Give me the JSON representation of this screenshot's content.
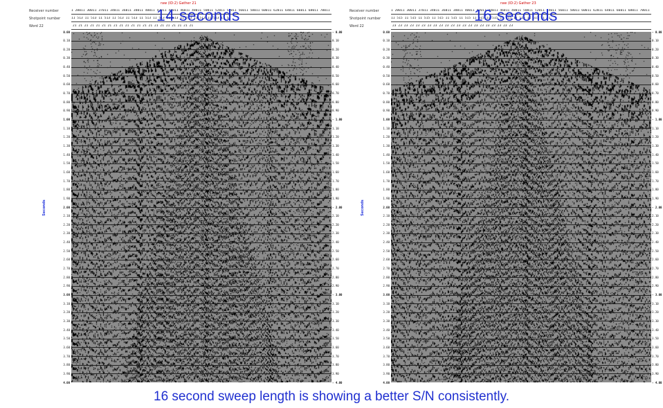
{
  "panels": [
    {
      "gather_title": "raw (ID:2)  Gather 21",
      "overlay_label": "14 seconds",
      "header_labels": [
        "Receiver number",
        "Shotpoint number",
        "Word 22"
      ],
      "receiver_numbers": "1 20011 30011 37011 34011 36011 38011 40011 42011 44011 46011 48011 50011 52011 54011 56011 58011 60011 62011 64011 66011 68011 70011 72",
      "shotpoint_numbers": "11 513        11 513        11 513        11 513        11 513        11 513        11 513        11 513        11 513        11 513        11 513        11 51",
      "word22_values": "21        21        21        21        21        21        21        21        21        21        21        21        21        21        21        21        21        21        21        21        21",
      "axis_label": "Seconds"
    },
    {
      "gather_title": "raw (ID:2)  Gather 23",
      "overlay_label": "16 seconds",
      "header_labels": [
        "Receiver number",
        "Shotpoint number",
        "Word 22"
      ],
      "receiver_numbers": "1 20011 30011 37011 34011 36011 38011 40011 42011 44011 46011 48011 50011 52011 54011 56011 58011 60011 62011 64011 66011 68011 70011 72",
      "shotpoint_numbers": "11 515        11 515        11 515        11 515        11 515        11 515        11 515        11 515        11 515        11 515        11 515        11 51",
      "word22_values": "23        23        23        23        23        23        23        23        23        23        23        23        23        23        23        23        23        23        23        23        23",
      "axis_label": "Seconds"
    }
  ],
  "time_axis": [
    "0.00",
    "0.10",
    "0.20",
    "0.30",
    "0.40",
    "0.50",
    "0.60",
    "0.70",
    "0.80",
    "0.90",
    "1.00",
    "1.10",
    "1.20",
    "1.30",
    "1.40",
    "1.50",
    "1.60",
    "1.70",
    "1.80",
    "1.90",
    "2.00",
    "2.10",
    "2.20",
    "2.30",
    "2.40",
    "2.50",
    "2.60",
    "2.70",
    "2.80",
    "2.90",
    "3.00",
    "3.10",
    "3.20",
    "3.30",
    "3.40",
    "3.50",
    "3.60",
    "3.70",
    "3.80",
    "3.90",
    "4.00"
  ],
  "caption": "16 second sweep length is showing a better S/N consistently.",
  "colors": {
    "accent": "#1f2fd0",
    "title_red": "#d00000",
    "trace_fill": "#8c8c8c"
  }
}
